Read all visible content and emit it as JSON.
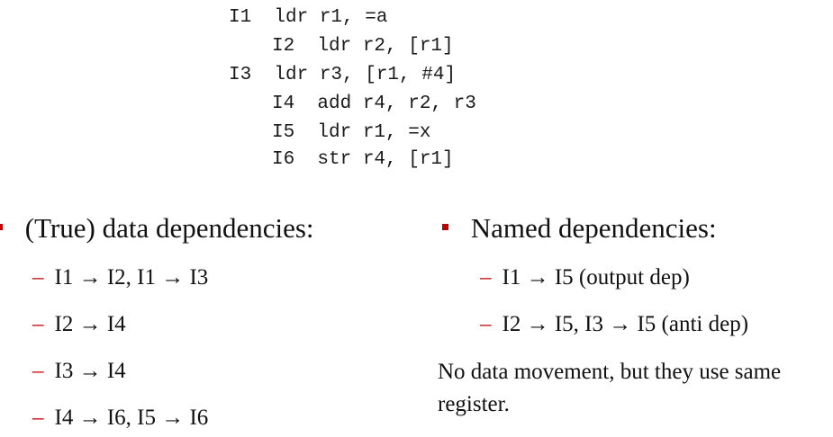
{
  "code": {
    "lines": [
      "I1  ldr r1, =a",
      "I2  ldr r2, [r1]",
      "I3  ldr r3, [r1, #4]",
      "I4  add r4, r2, r3",
      "I5  ldr r1, =x",
      "I6  str r4, [r1]"
    ]
  },
  "left": {
    "heading": "(True) data dependencies:",
    "items": [
      "I1 → I2, I1 → I3",
      "I2 → I4",
      "I3 → I4",
      "I4 → I6, I5 → I6"
    ]
  },
  "right": {
    "heading": "Named dependencies:",
    "items": [
      "I1 → I5 (output dep)",
      "I2 → I5, I3 → I5 (anti dep)"
    ],
    "note": "No data movement, but they use same register."
  },
  "colors": {
    "bullet": "#c00000",
    "text": "#111111"
  }
}
